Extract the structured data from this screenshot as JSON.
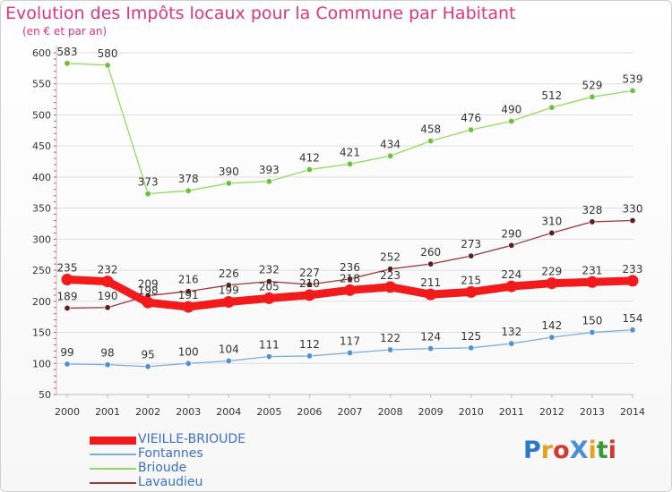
{
  "header": {
    "title": "Evolution des Impôts locaux pour la Commune par Habitant",
    "subtitle": "(en € et par an)"
  },
  "chart_data": {
    "type": "line",
    "title": "Evolution des Impôts locaux pour la Commune par Habitant",
    "subtitle": "(en € et par an)",
    "xlabel": "",
    "ylabel": "",
    "ylim": [
      50,
      600
    ],
    "yticks": [
      50,
      100,
      150,
      200,
      250,
      300,
      350,
      400,
      450,
      500,
      550,
      600
    ],
    "grid": "horizontal",
    "categories": [
      "2000",
      "2001",
      "2002",
      "2003",
      "2004",
      "2005",
      "2006",
      "2007",
      "2008",
      "2009",
      "2010",
      "2011",
      "2012",
      "2013",
      "2014"
    ],
    "series": [
      {
        "name": "Brioude",
        "color": "#8fdc5c",
        "marker": "#6cc03a",
        "values": [
          583,
          580,
          373,
          378,
          390,
          393,
          412,
          421,
          434,
          458,
          476,
          490,
          512,
          529,
          539
        ]
      },
      {
        "name": "Lavaudieu",
        "color": "#9b3b3b",
        "marker": "#5e1e1e",
        "values": [
          189,
          190,
          209,
          216,
          226,
          232,
          227,
          236,
          252,
          260,
          273,
          290,
          310,
          328,
          330
        ]
      },
      {
        "name": "Fontannes",
        "color": "#79aede",
        "marker": "#4f90d6",
        "values": [
          99,
          98,
          95,
          100,
          104,
          111,
          112,
          117,
          122,
          124,
          125,
          132,
          142,
          150,
          154
        ]
      },
      {
        "name": "VIEILLE-BRIOUDE",
        "color": "#f21b1b",
        "marker": "#f21b1b",
        "bold": true,
        "values": [
          235,
          232,
          198,
          191,
          199,
          205,
          210,
          218,
          223,
          211,
          215,
          224,
          229,
          231,
          233
        ]
      }
    ],
    "legend_order": [
      "VIEILLE-BRIOUDE",
      "Fontannes",
      "Brioude",
      "Lavaudieu"
    ],
    "legend_position": "bottom-left"
  },
  "logo": {
    "text": "ProXiti",
    "letters": [
      "P",
      "r",
      "o",
      "X",
      "i",
      "t",
      "i"
    ],
    "colors": [
      "#2b78c5",
      "#e8a21c",
      "#d5382e",
      "#4a8fd8",
      "#e8a21c",
      "#3a9a3a",
      "#d5382e"
    ]
  }
}
